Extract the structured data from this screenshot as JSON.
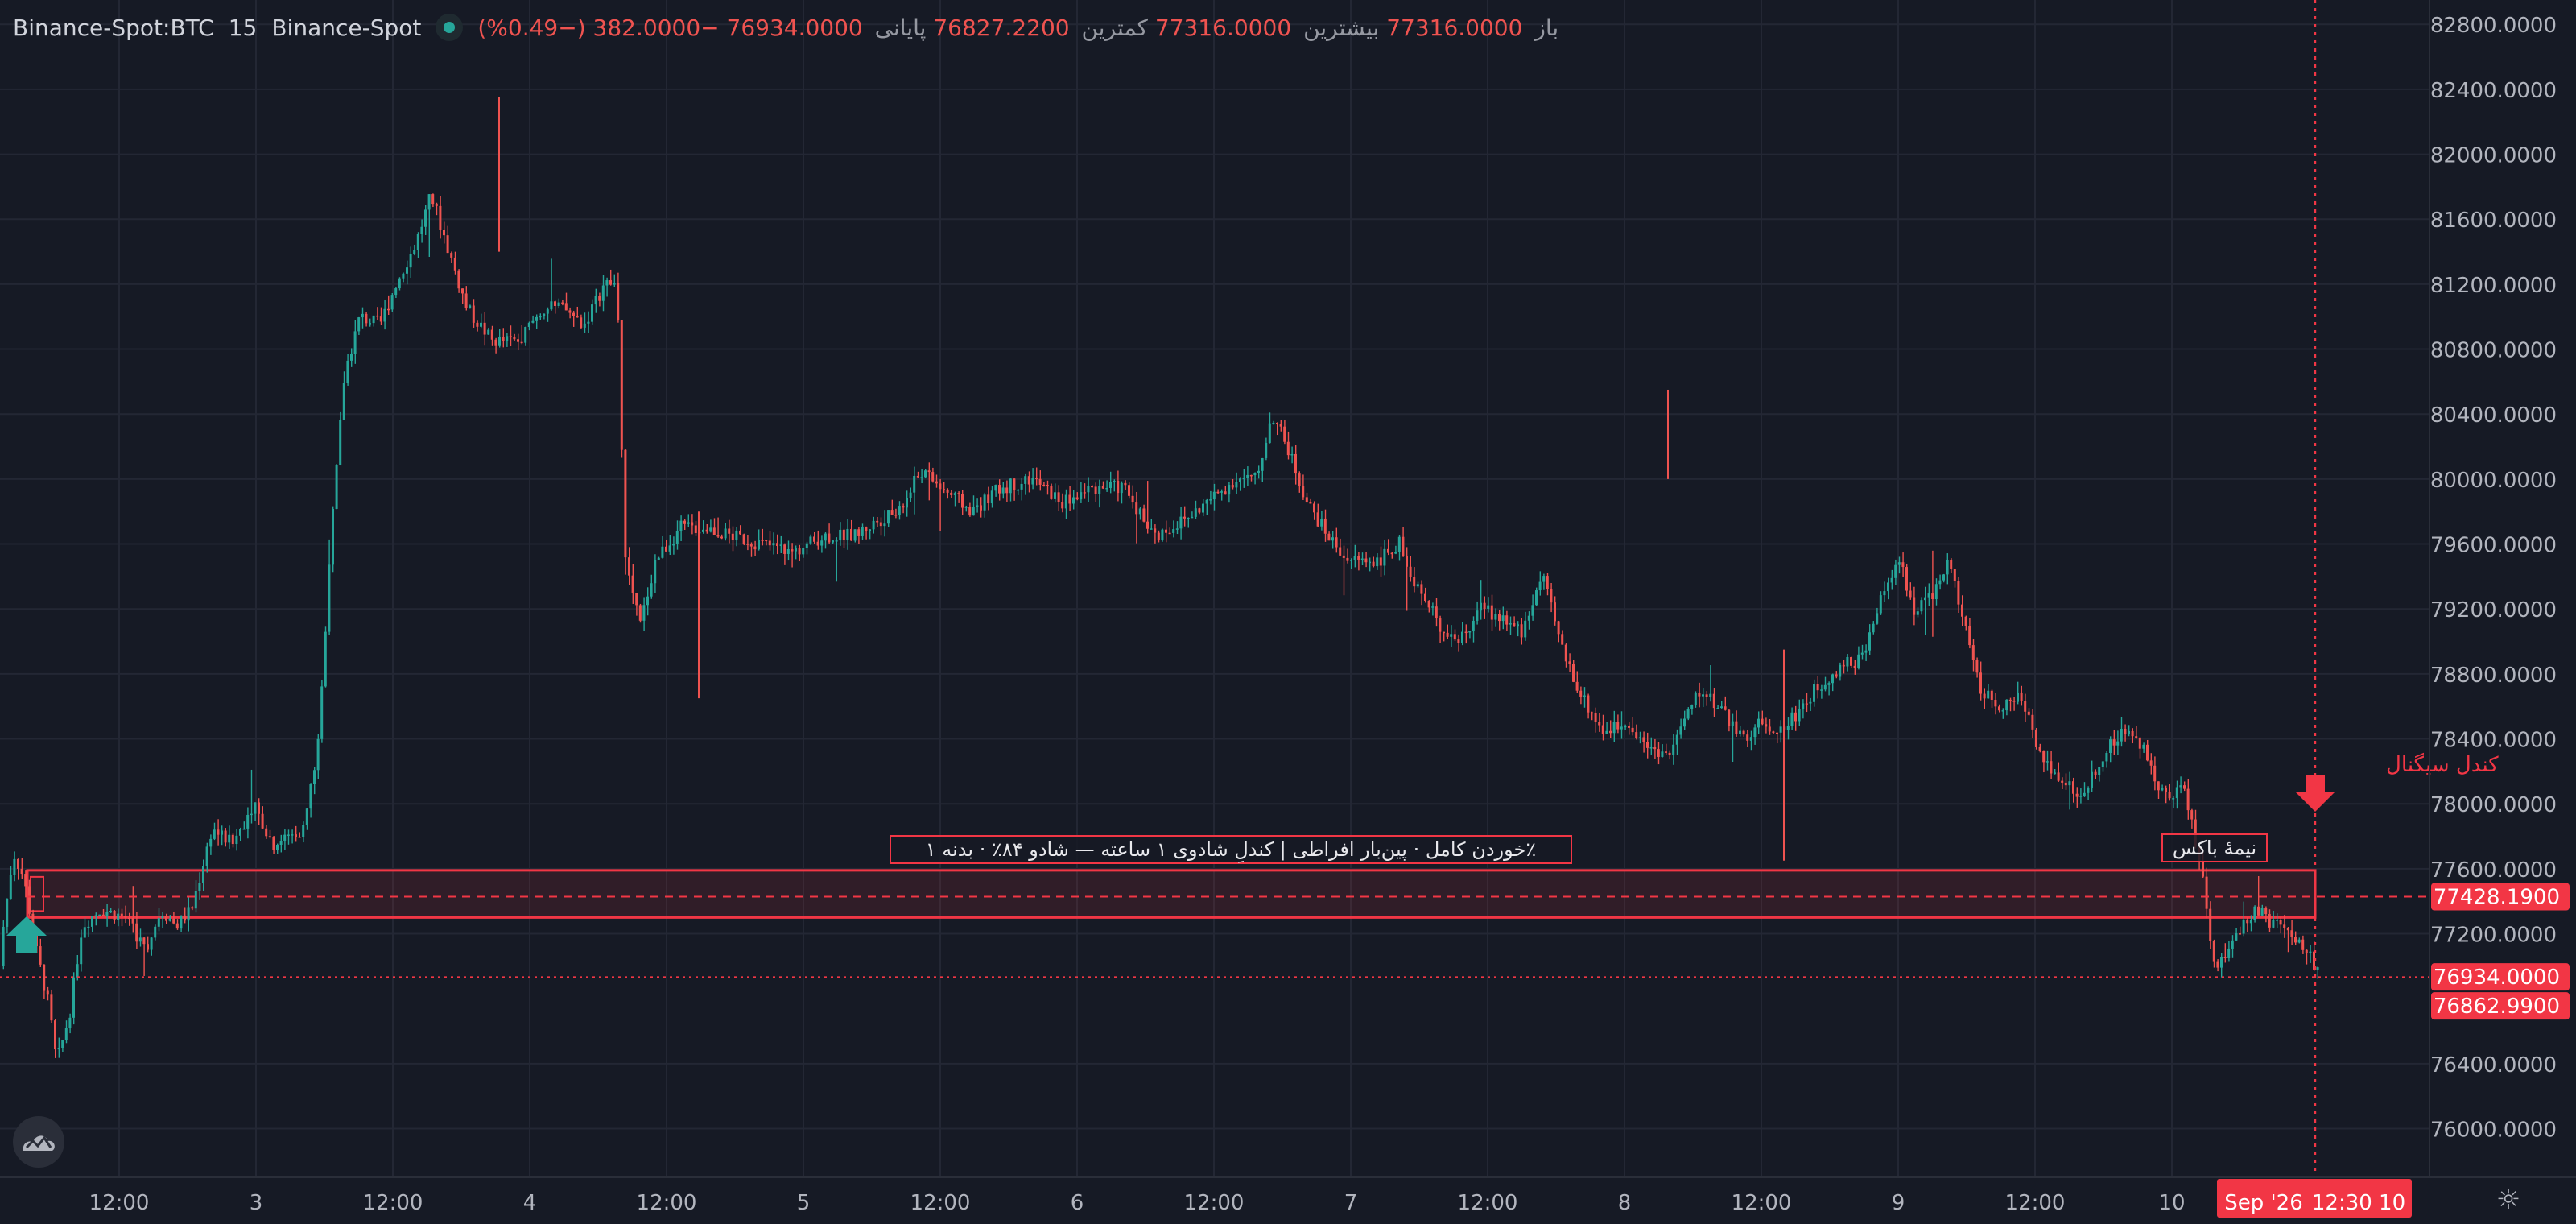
{
  "header": {
    "symbol": "Binance-Spot:BTC",
    "interval": "15",
    "exchange": "Binance-Spot",
    "open_label": "باز",
    "open": "77316.0000",
    "high_label": "بیشترین",
    "high": "77316.0000",
    "low_label": "کمترین",
    "low": "76827.2200",
    "close_label": "پایانی",
    "close": "76934.0000",
    "change": "−382.0000 (−0.49%)"
  },
  "colors": {
    "background": "#161a25",
    "grid": "#232734",
    "up": "#26a69a",
    "down": "#ef5350",
    "axis_text": "#b2b5be",
    "accent_red": "#f23645"
  },
  "chart_data": {
    "type": "candlestick",
    "y_range": [
      75700,
      82950
    ],
    "y_ticks": [
      {
        "value": 82800,
        "label": "82800.0000"
      },
      {
        "value": 82400,
        "label": "82400.0000"
      },
      {
        "value": 82000,
        "label": "82000.0000"
      },
      {
        "value": 81600,
        "label": "81600.0000"
      },
      {
        "value": 81200,
        "label": "81200.0000"
      },
      {
        "value": 80800,
        "label": "80800.0000"
      },
      {
        "value": 80400,
        "label": "80400.0000"
      },
      {
        "value": 80000,
        "label": "80000.0000"
      },
      {
        "value": 79600,
        "label": "79600.0000"
      },
      {
        "value": 79200,
        "label": "79200.0000"
      },
      {
        "value": 78800,
        "label": "78800.0000"
      },
      {
        "value": 78400,
        "label": "78400.0000"
      },
      {
        "value": 78000,
        "label": "78000.0000"
      },
      {
        "value": 77600,
        "label": "77600.0000"
      },
      {
        "value": 77200,
        "label": "77200.0000"
      },
      {
        "value": 76400,
        "label": "76400.0000"
      },
      {
        "value": 76000,
        "label": "76000.0000"
      }
    ],
    "x_ticks": [
      "12:00",
      "3",
      "12:00",
      "4",
      "12:00",
      "5",
      "12:00",
      "6",
      "12:00",
      "7",
      "12:00",
      "8",
      "12:00",
      "9",
      "12:00",
      "10"
    ],
    "price_path": [
      [
        0.0,
        77000
      ],
      [
        0.6,
        77700
      ],
      [
        1.0,
        77550
      ],
      [
        1.5,
        77100
      ],
      [
        2.0,
        76750
      ],
      [
        2.3,
        76400
      ],
      [
        2.8,
        76700
      ],
      [
        3.3,
        77250
      ],
      [
        4.0,
        77350
      ],
      [
        5.0,
        77300
      ],
      [
        5.8,
        77100
      ],
      [
        6.4,
        77350
      ],
      [
        7.0,
        77250
      ],
      [
        7.6,
        77350
      ],
      [
        8.4,
        77850
      ],
      [
        9.2,
        77750
      ],
      [
        10.0,
        78000
      ],
      [
        10.8,
        77750
      ],
      [
        11.4,
        77800
      ],
      [
        12.0,
        77850
      ],
      [
        12.6,
        78400
      ],
      [
        13.0,
        79500
      ],
      [
        13.6,
        80650
      ],
      [
        14.2,
        81000
      ],
      [
        15.0,
        80950
      ],
      [
        15.6,
        81200
      ],
      [
        16.4,
        81450
      ],
      [
        17.0,
        81750
      ],
      [
        17.6,
        81450
      ],
      [
        18.4,
        81050
      ],
      [
        19.4,
        80850
      ],
      [
        20.4,
        80850
      ],
      [
        21.4,
        81050
      ],
      [
        22.2,
        81050
      ],
      [
        23.0,
        80950
      ],
      [
        23.8,
        81200
      ],
      [
        24.3,
        81200
      ],
      [
        24.6,
        79500
      ],
      [
        25.2,
        79100
      ],
      [
        25.8,
        79500
      ],
      [
        26.8,
        79700
      ],
      [
        27.8,
        79700
      ],
      [
        28.8,
        79650
      ],
      [
        30.0,
        79600
      ],
      [
        31.2,
        79550
      ],
      [
        32.4,
        79650
      ],
      [
        33.6,
        79650
      ],
      [
        34.6,
        79750
      ],
      [
        35.4,
        79800
      ],
      [
        36.2,
        80050
      ],
      [
        37.0,
        79950
      ],
      [
        38.2,
        79800
      ],
      [
        39.4,
        79950
      ],
      [
        40.6,
        80000
      ],
      [
        41.8,
        79850
      ],
      [
        43.0,
        79950
      ],
      [
        44.2,
        79950
      ],
      [
        45.4,
        79650
      ],
      [
        46.6,
        79750
      ],
      [
        47.8,
        79900
      ],
      [
        48.6,
        80000
      ],
      [
        49.4,
        80000
      ],
      [
        50.0,
        80400
      ],
      [
        50.6,
        80200
      ],
      [
        51.4,
        79850
      ],
      [
        52.2,
        79650
      ],
      [
        53.0,
        79500
      ],
      [
        54.2,
        79500
      ],
      [
        55.0,
        79600
      ],
      [
        55.8,
        79300
      ],
      [
        56.6,
        79100
      ],
      [
        57.4,
        79000
      ],
      [
        58.2,
        79200
      ],
      [
        59.0,
        79150
      ],
      [
        59.8,
        79050
      ],
      [
        60.6,
        79400
      ],
      [
        61.4,
        78950
      ],
      [
        62.2,
        78650
      ],
      [
        63.0,
        78450
      ],
      [
        64.0,
        78500
      ],
      [
        64.8,
        78350
      ],
      [
        65.6,
        78300
      ],
      [
        66.0,
        78450
      ],
      [
        66.8,
        78700
      ],
      [
        67.6,
        78600
      ],
      [
        68.4,
        78400
      ],
      [
        69.2,
        78500
      ],
      [
        70.0,
        78450
      ],
      [
        70.8,
        78600
      ],
      [
        71.6,
        78750
      ],
      [
        72.4,
        78850
      ],
      [
        73.2,
        78900
      ],
      [
        74.0,
        79300
      ],
      [
        74.6,
        79500
      ],
      [
        75.2,
        79200
      ],
      [
        76.0,
        79300
      ],
      [
        76.6,
        79500
      ],
      [
        77.2,
        79100
      ],
      [
        77.8,
        78700
      ],
      [
        78.6,
        78600
      ],
      [
        79.4,
        78650
      ],
      [
        80.2,
        78300
      ],
      [
        81.0,
        78150
      ],
      [
        81.8,
        78050
      ],
      [
        82.6,
        78300
      ],
      [
        83.4,
        78450
      ],
      [
        84.2,
        78350
      ],
      [
        85.0,
        78050
      ],
      [
        85.8,
        78100
      ],
      [
        86.6,
        77500
      ],
      [
        87.0,
        76950
      ],
      [
        87.8,
        77200
      ],
      [
        88.6,
        77350
      ],
      [
        89.4,
        77250
      ],
      [
        90.2,
        77150
      ],
      [
        91.0,
        77000
      ]
    ],
    "vertical_marker_at": "Sep '26 12:30 10",
    "zone": {
      "top": 77590,
      "bottom": 77300,
      "mid_dashed": 77428.19
    },
    "current_price_line": 76934.0,
    "price_labels": [
      {
        "value": 77428.19,
        "text": "77428.1900"
      },
      {
        "value": 76934.0,
        "text": "76934.0000"
      },
      {
        "value": 76862.99,
        "text": "76862.9900"
      }
    ],
    "annotations": {
      "main": "٪خوردن کامل · پین‌بار افراطی | کندلِ شادوی ۱ ساعته — شادو ۸۴٪ · بدنه ۱",
      "half_box": "نیمهٔ باکس",
      "sell_signal": "کندل سیگنال"
    },
    "crosshair_date": "Sep '26",
    "crosshair_time": "12:30 10"
  }
}
